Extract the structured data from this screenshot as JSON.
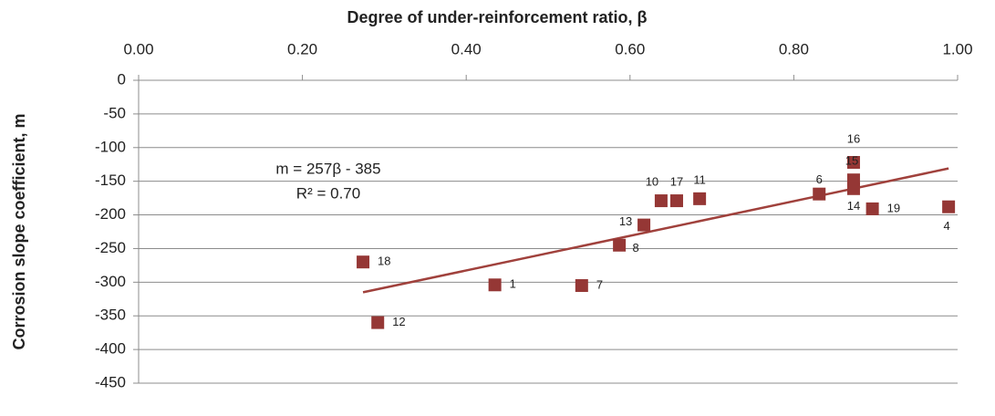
{
  "chart_data": {
    "type": "scatter",
    "xlabel": "Degree of under-reinforcement ratio, β",
    "ylabel": "Corrosion slope coefficient, m",
    "xlim": [
      0,
      1
    ],
    "xticks": [
      {
        "value": 0,
        "label": "0.00"
      },
      {
        "value": 0.2,
        "label": "0.20"
      },
      {
        "value": 0.4,
        "label": "0.40"
      },
      {
        "value": 0.6,
        "label": "0.60"
      },
      {
        "value": 0.8,
        "label": "0.80"
      },
      {
        "value": 1,
        "label": "1.00"
      }
    ],
    "ylim": [
      -450,
      0
    ],
    "yticks": [
      0,
      -50,
      -100,
      -150,
      -200,
      -250,
      -300,
      -350,
      -400,
      -450
    ],
    "grid": true,
    "series": [
      {
        "color": "#953735",
        "labels": [
          "18",
          "12",
          "1",
          "7",
          "8",
          "13",
          "10",
          "17",
          "11",
          "6",
          "16",
          "15",
          "14",
          "19",
          "4"
        ],
        "x": [
          0.274,
          0.292,
          0.435,
          0.541,
          0.587,
          0.617,
          0.638,
          0.657,
          0.685,
          0.831,
          0.873,
          0.873,
          0.873,
          0.896,
          0.989
        ],
        "values": [
          -270,
          -360,
          -304,
          -305,
          -245,
          -215,
          -179,
          -179,
          -176,
          -169,
          -122,
          -148,
          -161,
          -191,
          -188
        ]
      }
    ],
    "trendline": {
      "color": "#a0413c",
      "x": [
        0.274,
        0.989
      ],
      "values": [
        -315,
        -131
      ]
    },
    "annotations": [
      "m = 257β - 385",
      "R² = 0.70"
    ]
  }
}
